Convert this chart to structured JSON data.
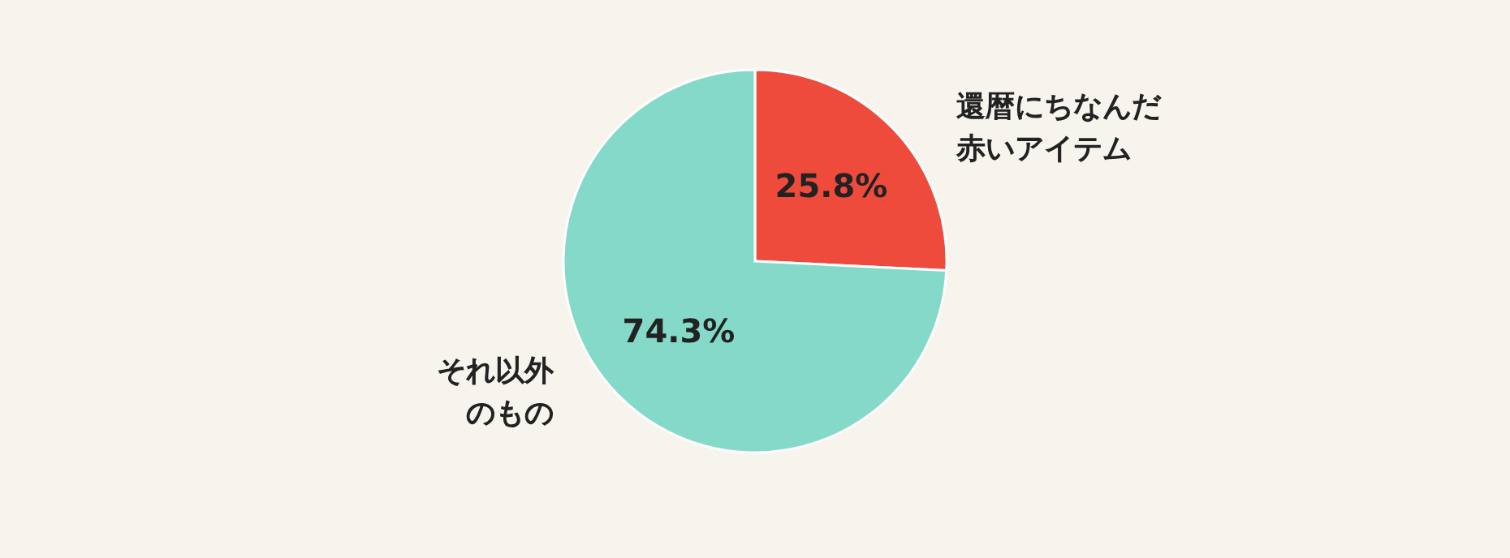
{
  "chart_data": {
    "type": "pie",
    "categories": [
      "還暦にちなんだ赤いアイテム",
      "それ以外のもの"
    ],
    "values": [
      25.8,
      74.3
    ],
    "colors": [
      "#ef4b3c",
      "#84d9c8"
    ],
    "value_labels": [
      "25.8%",
      "74.3%"
    ],
    "legend": false
  }
}
